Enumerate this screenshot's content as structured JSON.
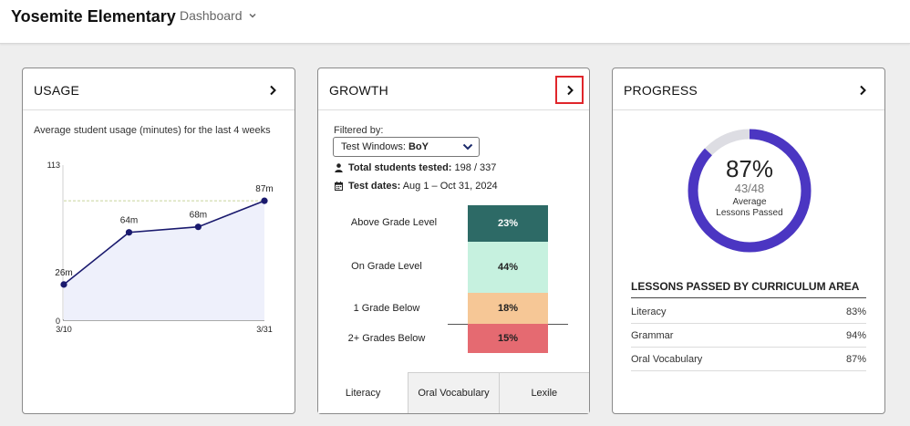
{
  "header": {
    "school_name": "Yosemite Elementary",
    "dashboard_label": "Dashboard"
  },
  "usage": {
    "title": "USAGE",
    "subtitle": "Average student usage (minutes) for the last 4 weeks"
  },
  "chart_data": {
    "type": "area",
    "title": "",
    "xlabel": "",
    "ylabel": "",
    "ylim": [
      0,
      113
    ],
    "y_ticks": [
      "113",
      "0"
    ],
    "x_tick_labels": [
      "3/10",
      "3/31"
    ],
    "x": [
      1,
      2,
      3,
      4
    ],
    "values": [
      26,
      64,
      68,
      87
    ],
    "data_labels": [
      "26m",
      "64m",
      "68m",
      "87m"
    ],
    "reference_line": 87,
    "colors": {
      "line": "#1a1a6e",
      "fill": "#eef0fb",
      "reference": "#c7d39a"
    }
  },
  "growth": {
    "title": "GROWTH",
    "filter_label": "Filtered by:",
    "filter_prefix": "Test Windows: ",
    "filter_value": "BoY",
    "students_label": "Total students tested:",
    "students_value": " 198 / 337",
    "dates_label": "Test dates:",
    "dates_value": " Aug 1 – Oct 31, 2024",
    "levels": [
      {
        "label": "Above Grade Level",
        "value": "23%",
        "percent": 23,
        "color": "#2d6a66",
        "text_color": "#ffffff"
      },
      {
        "label": "On Grade Level",
        "value": "44%",
        "percent": 44,
        "color": "#c6f1df",
        "text_color": "#222222"
      },
      {
        "label": "1 Grade Below",
        "value": "18%",
        "percent": 18,
        "color": "#f6c796",
        "text_color": "#222222"
      },
      {
        "label": "2+ Grades Below",
        "value": "15%",
        "percent": 15,
        "color": "#e56a71",
        "text_color": "#222222"
      }
    ],
    "tabs": [
      "Literacy",
      "Oral Vocabulary",
      "Lexile"
    ]
  },
  "progress": {
    "title": "PROGRESS",
    "percent_label": "87%",
    "percent": 87,
    "fraction": "43/48",
    "caption_line1": "Average",
    "caption_line2": "Lessons Passed",
    "ring_color": "#4b36c2",
    "track_color": "#dddde3",
    "area_title": "LESSONS PASSED BY CURRICULUM AREA",
    "areas": [
      {
        "name": "Literacy",
        "value": "83%"
      },
      {
        "name": "Grammar",
        "value": "94%"
      },
      {
        "name": "Oral Vocabulary",
        "value": "87%"
      }
    ]
  }
}
